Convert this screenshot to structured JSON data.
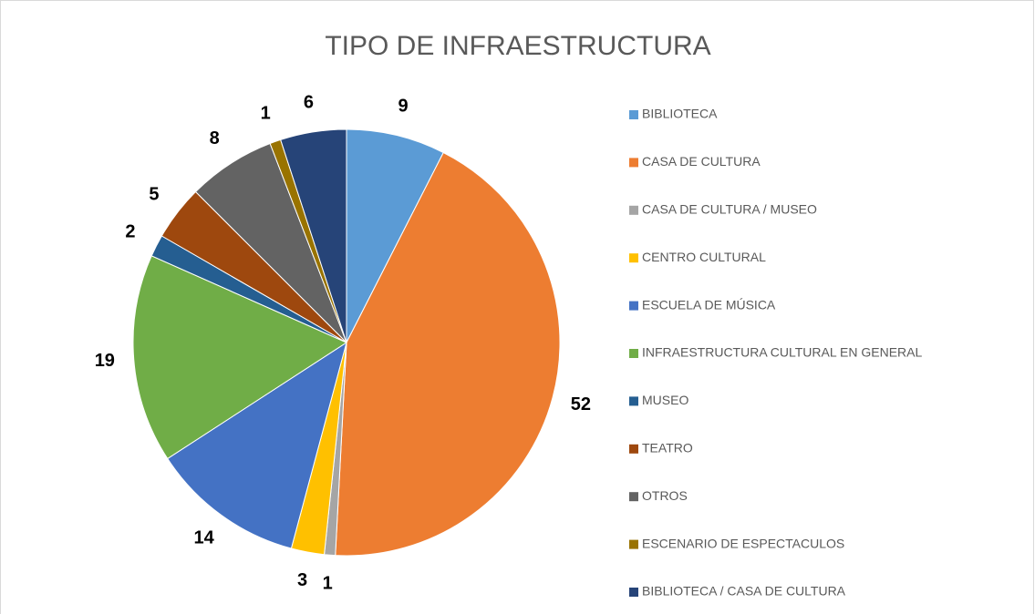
{
  "chart_data": {
    "type": "pie",
    "title": "TIPO DE INFRAESTRUCTURA",
    "categories": [
      "BIBLIOTECA",
      "CASA DE CULTURA",
      "CASA DE CULTURA / MUSEO",
      "CENTRO CULTURAL",
      "ESCUELA DE MÚSICA",
      "INFRAESTRUCTURA CULTURAL EN GENERAL",
      "MUSEO",
      "TEATRO",
      "OTROS",
      "ESCENARIO DE ESPECTACULOS",
      "BIBLIOTECA / CASA DE CULTURA"
    ],
    "values": [
      9,
      52,
      1,
      3,
      14,
      19,
      2,
      5,
      8,
      1,
      6
    ],
    "colors": [
      "#5b9bd5",
      "#ed7d31",
      "#a5a5a5",
      "#ffc000",
      "#4472c4",
      "#70ad47",
      "#255e91",
      "#9e480e",
      "#636363",
      "#997300",
      "#264478"
    ],
    "legend": "right"
  }
}
